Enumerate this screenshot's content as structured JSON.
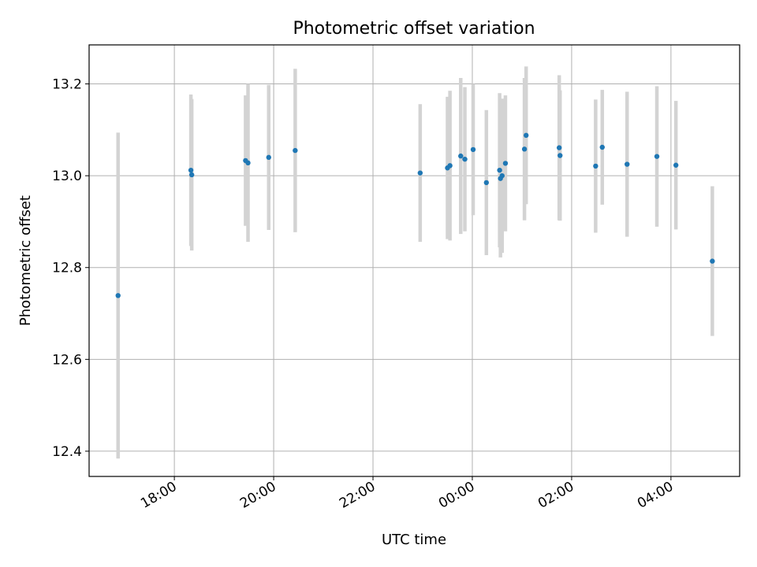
{
  "chart_data": {
    "type": "scatter",
    "title": "Photometric offset variation",
    "xlabel": "UTC time",
    "ylabel": "Photometric offset",
    "grid": true,
    "xlim": [
      "16:17",
      "05:23"
    ],
    "ylim": [
      12.345,
      13.285
    ],
    "x_tick_labels": [
      "18:00",
      "20:00",
      "22:00",
      "00:00",
      "02:00",
      "04:00"
    ],
    "y_tick_labels": [
      "12.4",
      "12.6",
      "12.8",
      "13.0",
      "13.2"
    ],
    "y_ticks": [
      12.4,
      12.6,
      12.8,
      13.0,
      13.2
    ],
    "colors": {
      "point": "#1f77b4",
      "errorbar": "#d3d3d3",
      "grid": "#b0b0b0"
    },
    "series": [
      {
        "points": [
          {
            "x": "16:52",
            "y": 12.739,
            "yerr": 0.355
          },
          {
            "x": "18:20",
            "y": 13.012,
            "yerr": 0.165
          },
          {
            "x": "18:21",
            "y": 13.002,
            "yerr": 0.165
          },
          {
            "x": "19:26",
            "y": 13.033,
            "yerr": 0.142
          },
          {
            "x": "19:29",
            "y": 13.028,
            "yerr": 0.172
          },
          {
            "x": "19:54",
            "y": 13.04,
            "yerr": 0.158
          },
          {
            "x": "20:26",
            "y": 13.055,
            "yerr": 0.178
          },
          {
            "x": "22:57",
            "y": 13.006,
            "yerr": 0.15
          },
          {
            "x": "23:30",
            "y": 13.017,
            "yerr": 0.155
          },
          {
            "x": "23:33",
            "y": 13.022,
            "yerr": 0.163
          },
          {
            "x": "23:46",
            "y": 13.043,
            "yerr": 0.17
          },
          {
            "x": "23:51",
            "y": 13.036,
            "yerr": 0.157
          },
          {
            "x": "00:01",
            "y": 13.057,
            "yerr": 0.143
          },
          {
            "x": "00:17",
            "y": 12.985,
            "yerr": 0.158
          },
          {
            "x": "00:33",
            "y": 13.012,
            "yerr": 0.168
          },
          {
            "x": "00:34",
            "y": 12.994,
            "yerr": 0.172
          },
          {
            "x": "00:36",
            "y": 13.0,
            "yerr": 0.168
          },
          {
            "x": "00:40",
            "y": 13.027,
            "yerr": 0.148
          },
          {
            "x": "01:03",
            "y": 13.058,
            "yerr": 0.155
          },
          {
            "x": "01:05",
            "y": 13.088,
            "yerr": 0.15
          },
          {
            "x": "01:45",
            "y": 13.061,
            "yerr": 0.158
          },
          {
            "x": "01:46",
            "y": 13.044,
            "yerr": 0.142
          },
          {
            "x": "02:29",
            "y": 13.021,
            "yerr": 0.145
          },
          {
            "x": "02:37",
            "y": 13.062,
            "yerr": 0.125
          },
          {
            "x": "03:07",
            "y": 13.025,
            "yerr": 0.158
          },
          {
            "x": "03:43",
            "y": 13.042,
            "yerr": 0.153
          },
          {
            "x": "04:06",
            "y": 13.023,
            "yerr": 0.14
          },
          {
            "x": "04:50",
            "y": 12.814,
            "yerr": 0.163
          }
        ]
      }
    ]
  }
}
